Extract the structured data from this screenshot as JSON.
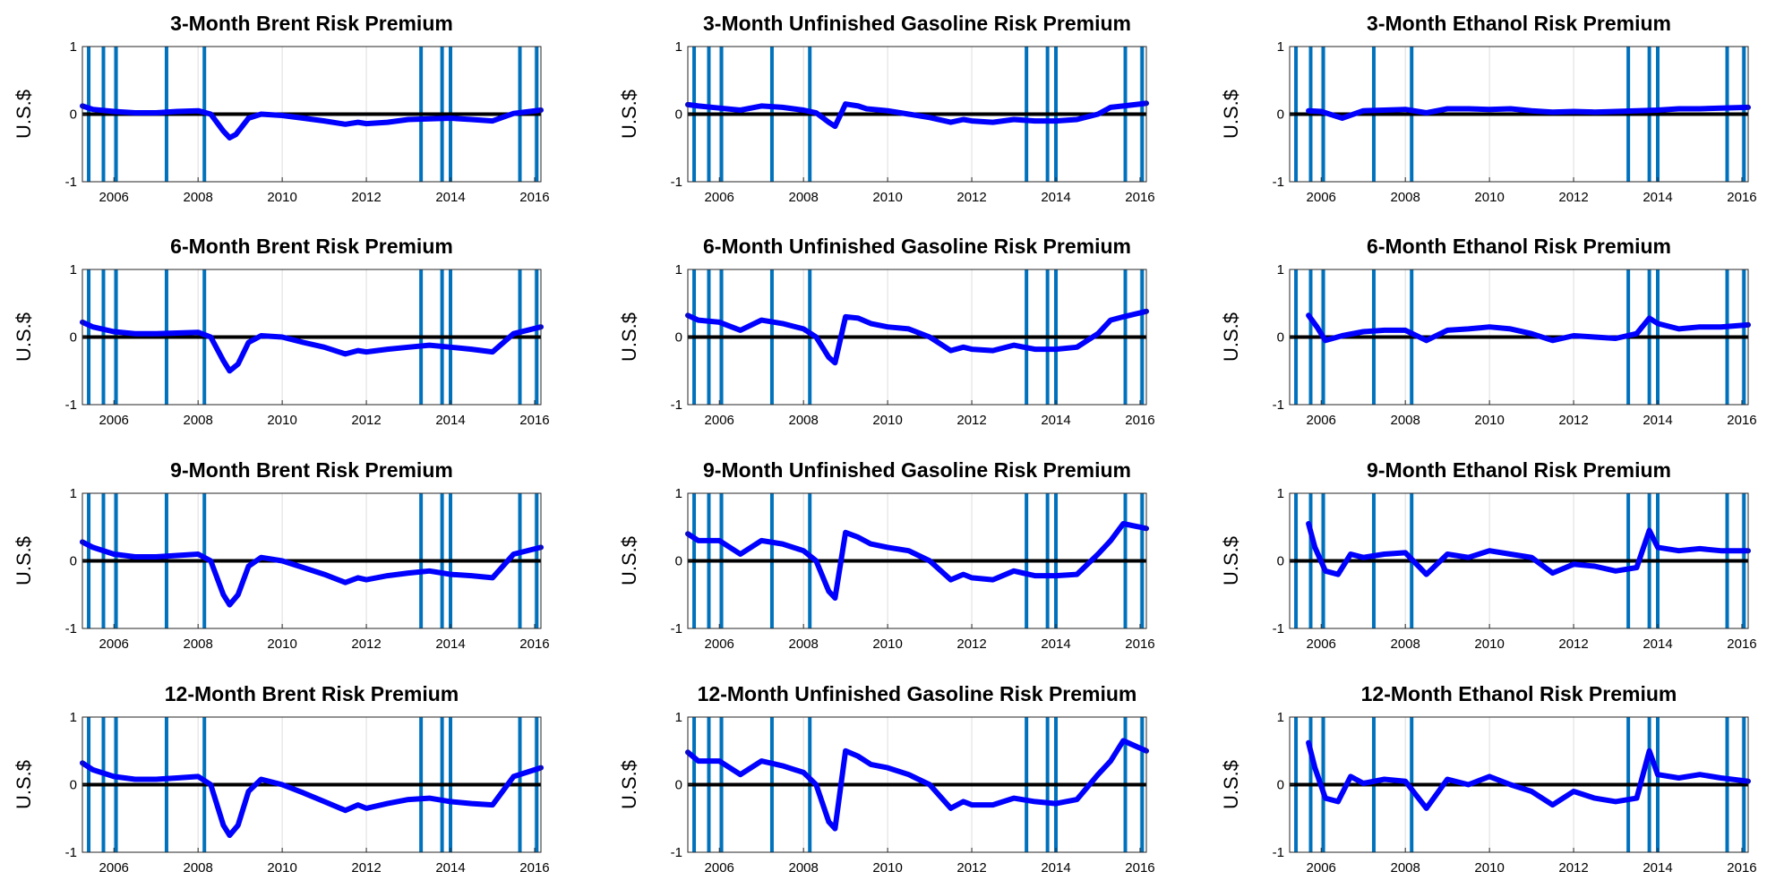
{
  "style": {
    "risk_premium_color": "#0000ff",
    "event_line_color": "#0072bd",
    "zero_line_color": "#000000",
    "grid_color": "#dcdcdc",
    "axes_color": "#262626"
  },
  "shared": {
    "ylabel": "U.S.$",
    "y_ticks": [
      1,
      0,
      -1
    ],
    "x_ticks": [
      2006,
      2008,
      2010,
      2012,
      2014,
      2016
    ],
    "xlim": [
      2005.25,
      2016.15
    ],
    "ylim": [
      -1,
      1
    ],
    "event_years": [
      2005.4,
      2005.75,
      2006.05,
      2007.25,
      2008.15,
      2013.3,
      2013.8,
      2014.0,
      2015.65,
      2016.05
    ]
  },
  "chart_data": [
    {
      "type": "line",
      "title": "3-Month Brent Risk Premium",
      "xlabel": "",
      "ylabel": "U.S.$",
      "ylim": [
        -1,
        1
      ],
      "grid": "vertical",
      "series": [
        {
          "x": [
            2005.25,
            2005.5,
            2006.0,
            2006.5,
            2007.0,
            2007.5,
            2008.0,
            2008.3,
            2008.6,
            2008.75,
            2008.9,
            2009.2,
            2009.5,
            2010.0,
            2010.5,
            2011.0,
            2011.5,
            2011.8,
            2012.0,
            2012.5,
            2013.0,
            2013.5,
            2014.0,
            2014.5,
            2015.0,
            2015.5,
            2016.15
          ],
          "y": [
            0.12,
            0.07,
            0.04,
            0.02,
            0.02,
            0.04,
            0.05,
            0.0,
            -0.25,
            -0.35,
            -0.3,
            -0.06,
            0.0,
            -0.02,
            -0.06,
            -0.1,
            -0.15,
            -0.12,
            -0.14,
            -0.12,
            -0.08,
            -0.07,
            -0.06,
            -0.08,
            -0.1,
            0.01,
            0.06
          ]
        }
      ]
    },
    {
      "type": "line",
      "title": "3-Month Unfinished Gasoline Risk Premium",
      "xlabel": "",
      "ylabel": "U.S.$",
      "ylim": [
        -1,
        1
      ],
      "grid": "vertical",
      "series": [
        {
          "x": [
            2005.25,
            2005.5,
            2006.0,
            2006.5,
            2007.0,
            2007.5,
            2008.0,
            2008.3,
            2008.6,
            2008.75,
            2009.0,
            2009.3,
            2009.5,
            2010.0,
            2010.5,
            2011.0,
            2011.5,
            2011.8,
            2012.0,
            2012.5,
            2013.0,
            2013.5,
            2014.0,
            2014.5,
            2015.0,
            2015.3,
            2015.6,
            2016.15
          ],
          "y": [
            0.14,
            0.12,
            0.09,
            0.06,
            0.12,
            0.1,
            0.06,
            0.02,
            -0.12,
            -0.18,
            0.15,
            0.12,
            0.08,
            0.05,
            0.0,
            -0.05,
            -0.12,
            -0.08,
            -0.1,
            -0.12,
            -0.08,
            -0.1,
            -0.1,
            -0.08,
            0.0,
            0.1,
            0.12,
            0.16
          ]
        }
      ]
    },
    {
      "type": "line",
      "title": "3-Month Ethanol Risk Premium",
      "xlabel": "",
      "ylabel": "U.S.$",
      "ylim": [
        -1,
        1
      ],
      "grid": "vertical",
      "series": [
        {
          "x": [
            2005.7,
            2006.0,
            2006.5,
            2007.0,
            2007.5,
            2008.0,
            2008.5,
            2009.0,
            2009.5,
            2010.0,
            2010.5,
            2011.0,
            2011.5,
            2012.0,
            2012.5,
            2013.0,
            2013.5,
            2014.0,
            2014.5,
            2015.0,
            2015.5,
            2016.15
          ],
          "y": [
            0.05,
            0.04,
            -0.06,
            0.05,
            0.06,
            0.07,
            0.02,
            0.08,
            0.08,
            0.07,
            0.08,
            0.05,
            0.03,
            0.04,
            0.03,
            0.04,
            0.05,
            0.06,
            0.08,
            0.08,
            0.09,
            0.1
          ]
        }
      ]
    },
    {
      "type": "line",
      "title": "6-Month Brent Risk Premium",
      "xlabel": "",
      "ylabel": "U.S.$",
      "ylim": [
        -1,
        1
      ],
      "grid": "vertical",
      "series": [
        {
          "x": [
            2005.25,
            2005.5,
            2006.0,
            2006.5,
            2007.0,
            2007.5,
            2008.0,
            2008.3,
            2008.6,
            2008.75,
            2008.95,
            2009.2,
            2009.5,
            2010.0,
            2010.5,
            2011.0,
            2011.5,
            2011.8,
            2012.0,
            2012.5,
            2013.0,
            2013.5,
            2014.0,
            2014.5,
            2015.0,
            2015.5,
            2016.15
          ],
          "y": [
            0.22,
            0.15,
            0.08,
            0.05,
            0.05,
            0.06,
            0.07,
            0.0,
            -0.35,
            -0.5,
            -0.4,
            -0.08,
            0.02,
            0.0,
            -0.08,
            -0.15,
            -0.25,
            -0.2,
            -0.22,
            -0.18,
            -0.15,
            -0.12,
            -0.15,
            -0.18,
            -0.22,
            0.05,
            0.15
          ]
        }
      ]
    },
    {
      "type": "line",
      "title": "6-Month Unfinished Gasoline Risk Premium",
      "xlabel": "",
      "ylabel": "U.S.$",
      "ylim": [
        -1,
        1
      ],
      "grid": "vertical",
      "series": [
        {
          "x": [
            2005.25,
            2005.5,
            2006.0,
            2006.5,
            2007.0,
            2007.5,
            2008.0,
            2008.3,
            2008.6,
            2008.75,
            2009.0,
            2009.3,
            2009.6,
            2010.0,
            2010.5,
            2011.0,
            2011.5,
            2011.8,
            2012.0,
            2012.5,
            2013.0,
            2013.5,
            2014.0,
            2014.5,
            2015.0,
            2015.3,
            2015.6,
            2016.15
          ],
          "y": [
            0.32,
            0.25,
            0.22,
            0.1,
            0.25,
            0.2,
            0.12,
            0.0,
            -0.3,
            -0.38,
            0.3,
            0.28,
            0.2,
            0.15,
            0.12,
            0.0,
            -0.2,
            -0.15,
            -0.18,
            -0.2,
            -0.12,
            -0.18,
            -0.18,
            -0.15,
            0.05,
            0.25,
            0.3,
            0.38
          ]
        }
      ]
    },
    {
      "type": "line",
      "title": "6-Month Ethanol Risk Premium",
      "xlabel": "",
      "ylabel": "U.S.$",
      "ylim": [
        -1,
        1
      ],
      "grid": "vertical",
      "series": [
        {
          "x": [
            2005.7,
            2005.9,
            2006.1,
            2006.5,
            2007.0,
            2007.5,
            2008.0,
            2008.5,
            2009.0,
            2009.5,
            2010.0,
            2010.5,
            2011.0,
            2011.5,
            2012.0,
            2012.5,
            2013.0,
            2013.5,
            2013.8,
            2014.0,
            2014.5,
            2015.0,
            2015.5,
            2016.15
          ],
          "y": [
            0.32,
            0.15,
            -0.05,
            0.02,
            0.08,
            0.1,
            0.1,
            -0.05,
            0.1,
            0.12,
            0.15,
            0.12,
            0.05,
            -0.05,
            0.02,
            0.0,
            -0.02,
            0.05,
            0.28,
            0.2,
            0.12,
            0.15,
            0.15,
            0.18
          ]
        }
      ]
    },
    {
      "type": "line",
      "title": "9-Month Brent Risk Premium",
      "xlabel": "",
      "ylabel": "U.S.$",
      "ylim": [
        -1,
        1
      ],
      "grid": "vertical",
      "series": [
        {
          "x": [
            2005.25,
            2005.5,
            2006.0,
            2006.5,
            2007.0,
            2007.5,
            2008.0,
            2008.3,
            2008.6,
            2008.75,
            2008.95,
            2009.2,
            2009.5,
            2010.0,
            2010.5,
            2011.0,
            2011.5,
            2011.8,
            2012.0,
            2012.5,
            2013.0,
            2013.5,
            2014.0,
            2014.5,
            2015.0,
            2015.5,
            2016.15
          ],
          "y": [
            0.28,
            0.2,
            0.1,
            0.06,
            0.06,
            0.08,
            0.1,
            0.0,
            -0.5,
            -0.65,
            -0.5,
            -0.08,
            0.05,
            0.0,
            -0.1,
            -0.2,
            -0.32,
            -0.25,
            -0.28,
            -0.22,
            -0.18,
            -0.15,
            -0.2,
            -0.22,
            -0.25,
            0.1,
            0.2
          ]
        }
      ]
    },
    {
      "type": "line",
      "title": "9-Month Unfinished Gasoline Risk Premium",
      "xlabel": "",
      "ylabel": "U.S.$",
      "ylim": [
        -1,
        1
      ],
      "grid": "vertical",
      "series": [
        {
          "x": [
            2005.25,
            2005.5,
            2006.0,
            2006.5,
            2007.0,
            2007.5,
            2008.0,
            2008.3,
            2008.6,
            2008.75,
            2009.0,
            2009.3,
            2009.6,
            2010.0,
            2010.5,
            2011.0,
            2011.5,
            2011.8,
            2012.0,
            2012.5,
            2013.0,
            2013.5,
            2014.0,
            2014.5,
            2015.0,
            2015.3,
            2015.6,
            2016.15
          ],
          "y": [
            0.4,
            0.3,
            0.3,
            0.1,
            0.3,
            0.25,
            0.15,
            0.0,
            -0.45,
            -0.55,
            0.42,
            0.35,
            0.25,
            0.2,
            0.15,
            0.0,
            -0.28,
            -0.2,
            -0.25,
            -0.28,
            -0.15,
            -0.22,
            -0.22,
            -0.2,
            0.1,
            0.3,
            0.55,
            0.48
          ]
        }
      ]
    },
    {
      "type": "line",
      "title": "9-Month Ethanol Risk Premium",
      "xlabel": "",
      "ylabel": "U.S.$",
      "ylim": [
        -1,
        1
      ],
      "grid": "vertical",
      "series": [
        {
          "x": [
            2005.7,
            2005.85,
            2006.1,
            2006.4,
            2006.7,
            2007.0,
            2007.5,
            2008.0,
            2008.5,
            2009.0,
            2009.5,
            2010.0,
            2010.5,
            2011.0,
            2011.5,
            2012.0,
            2012.5,
            2013.0,
            2013.5,
            2013.8,
            2014.0,
            2014.5,
            2015.0,
            2015.5,
            2016.15
          ],
          "y": [
            0.55,
            0.2,
            -0.15,
            -0.2,
            0.1,
            0.05,
            0.1,
            0.12,
            -0.2,
            0.1,
            0.05,
            0.15,
            0.1,
            0.05,
            -0.18,
            -0.05,
            -0.08,
            -0.15,
            -0.1,
            0.45,
            0.2,
            0.15,
            0.18,
            0.15,
            0.15
          ]
        }
      ]
    },
    {
      "type": "line",
      "title": "12-Month Brent Risk Premium",
      "xlabel": "",
      "ylabel": "U.S.$",
      "ylim": [
        -1,
        1
      ],
      "grid": "vertical",
      "series": [
        {
          "x": [
            2005.25,
            2005.5,
            2006.0,
            2006.5,
            2007.0,
            2007.5,
            2008.0,
            2008.3,
            2008.6,
            2008.75,
            2008.95,
            2009.2,
            2009.5,
            2010.0,
            2010.5,
            2011.0,
            2011.5,
            2011.8,
            2012.0,
            2012.5,
            2013.0,
            2013.5,
            2014.0,
            2014.5,
            2015.0,
            2015.5,
            2016.15
          ],
          "y": [
            0.32,
            0.22,
            0.12,
            0.08,
            0.08,
            0.1,
            0.12,
            0.0,
            -0.6,
            -0.75,
            -0.6,
            -0.1,
            0.08,
            0.0,
            -0.12,
            -0.25,
            -0.38,
            -0.3,
            -0.35,
            -0.28,
            -0.22,
            -0.2,
            -0.25,
            -0.28,
            -0.3,
            0.12,
            0.25
          ]
        }
      ]
    },
    {
      "type": "line",
      "title": "12-Month Unfinished Gasoline Risk Premium",
      "xlabel": "",
      "ylabel": "U.S.$",
      "ylim": [
        -1,
        1
      ],
      "grid": "vertical",
      "series": [
        {
          "x": [
            2005.25,
            2005.5,
            2006.0,
            2006.5,
            2007.0,
            2007.5,
            2008.0,
            2008.3,
            2008.6,
            2008.75,
            2009.0,
            2009.3,
            2009.6,
            2010.0,
            2010.5,
            2011.0,
            2011.5,
            2011.8,
            2012.0,
            2012.5,
            2013.0,
            2013.5,
            2014.0,
            2014.5,
            2015.0,
            2015.3,
            2015.6,
            2016.15
          ],
          "y": [
            0.48,
            0.35,
            0.35,
            0.15,
            0.35,
            0.28,
            0.18,
            0.0,
            -0.55,
            -0.65,
            0.5,
            0.42,
            0.3,
            0.25,
            0.15,
            0.0,
            -0.35,
            -0.25,
            -0.3,
            -0.3,
            -0.2,
            -0.25,
            -0.28,
            -0.22,
            0.15,
            0.35,
            0.65,
            0.5
          ]
        }
      ]
    },
    {
      "type": "line",
      "title": "12-Month Ethanol Risk Premium",
      "xlabel": "",
      "ylabel": "U.S.$",
      "ylim": [
        -1,
        1
      ],
      "grid": "vertical",
      "series": [
        {
          "x": [
            2005.7,
            2005.85,
            2006.1,
            2006.4,
            2006.7,
            2007.0,
            2007.5,
            2008.0,
            2008.5,
            2009.0,
            2009.5,
            2010.0,
            2010.5,
            2011.0,
            2011.5,
            2012.0,
            2012.5,
            2013.0,
            2013.5,
            2013.8,
            2014.0,
            2014.5,
            2015.0,
            2015.5,
            2016.15
          ],
          "y": [
            0.62,
            0.25,
            -0.2,
            -0.25,
            0.12,
            0.02,
            0.08,
            0.05,
            -0.35,
            0.08,
            0.0,
            0.12,
            0.0,
            -0.1,
            -0.3,
            -0.1,
            -0.2,
            -0.25,
            -0.2,
            0.5,
            0.15,
            0.1,
            0.15,
            0.1,
            0.05
          ]
        }
      ]
    }
  ]
}
